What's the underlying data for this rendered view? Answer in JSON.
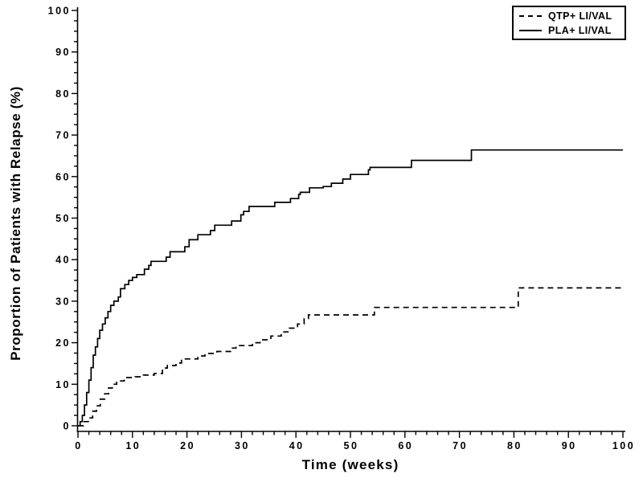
{
  "chart_data": {
    "type": "line",
    "subtype": "step-kaplan-meier",
    "title": "",
    "xlabel": "Time (weeks)",
    "ylabel": "Proportion of Patients with Relapse (%)",
    "xlim": [
      0,
      100
    ],
    "ylim": [
      0,
      100
    ],
    "x_ticks": [
      0,
      10,
      20,
      30,
      40,
      50,
      60,
      70,
      80,
      90,
      100
    ],
    "y_ticks": [
      0,
      10,
      20,
      30,
      40,
      50,
      60,
      70,
      80,
      90,
      100
    ],
    "x_minor_tick_step": 2,
    "y_minor_tick_step": 2.5,
    "grid": "off",
    "legend_position": "top-right",
    "line_color": "#000000",
    "background_color": "#ffffff",
    "series": [
      {
        "name": "QTP+ LI/VAL",
        "style": "dashed",
        "points": [
          [
            0,
            0
          ],
          [
            1,
            1
          ],
          [
            1.9,
            1.9
          ],
          [
            2.7,
            3.5
          ],
          [
            3.4,
            4.8
          ],
          [
            4.1,
            6.4
          ],
          [
            4.9,
            7.7
          ],
          [
            5.6,
            9.1
          ],
          [
            6.3,
            10
          ],
          [
            7.1,
            10.8
          ],
          [
            8.5,
            11.6
          ],
          [
            10.5,
            11.8
          ],
          [
            12,
            12.2
          ],
          [
            14,
            12.6
          ],
          [
            15.5,
            13.9
          ],
          [
            16.4,
            14.5
          ],
          [
            18,
            15.1
          ],
          [
            19,
            16.1
          ],
          [
            22,
            16.8
          ],
          [
            23.3,
            17.4
          ],
          [
            25.5,
            17.9
          ],
          [
            28,
            18.7
          ],
          [
            29,
            19.3
          ],
          [
            32,
            20
          ],
          [
            33.4,
            20.7
          ],
          [
            35.4,
            21.6
          ],
          [
            37.3,
            22.6
          ],
          [
            38.8,
            23.5
          ],
          [
            40.3,
            24.5
          ],
          [
            41.5,
            25.8
          ],
          [
            42.3,
            26.7
          ],
          [
            54.4,
            28.5
          ],
          [
            80.8,
            33.2
          ],
          [
            100,
            33.2
          ]
        ]
      },
      {
        "name": "PLA+ LI/VAL",
        "style": "solid",
        "points": [
          [
            0,
            0
          ],
          [
            0.4,
            1
          ],
          [
            0.8,
            2.5
          ],
          [
            1.2,
            5
          ],
          [
            1.6,
            8
          ],
          [
            2,
            11
          ],
          [
            2.4,
            14
          ],
          [
            2.8,
            17
          ],
          [
            3.2,
            19
          ],
          [
            3.6,
            21
          ],
          [
            4,
            23
          ],
          [
            4.5,
            24.5
          ],
          [
            5,
            26
          ],
          [
            5.5,
            27.5
          ],
          [
            6,
            29
          ],
          [
            6.6,
            30
          ],
          [
            7.4,
            31
          ],
          [
            7.8,
            33
          ],
          [
            8.6,
            34
          ],
          [
            9.3,
            35
          ],
          [
            10,
            35.7
          ],
          [
            10.8,
            36.4
          ],
          [
            12.2,
            37.7
          ],
          [
            13,
            38.6
          ],
          [
            13.4,
            39.6
          ],
          [
            16.2,
            40.6
          ],
          [
            16.9,
            41.9
          ],
          [
            19.6,
            43.1
          ],
          [
            20.4,
            44.8
          ],
          [
            22,
            46
          ],
          [
            24.3,
            47
          ],
          [
            25.1,
            48.3
          ],
          [
            28.2,
            49.3
          ],
          [
            29.9,
            50.8
          ],
          [
            30.4,
            51.6
          ],
          [
            31.4,
            52.8
          ],
          [
            36.1,
            53.8
          ],
          [
            39,
            54.7
          ],
          [
            40.5,
            55.7
          ],
          [
            40.8,
            56.2
          ],
          [
            42.5,
            57.3
          ],
          [
            45,
            57.6
          ],
          [
            46.5,
            58.4
          ],
          [
            48.6,
            59.4
          ],
          [
            50,
            60.5
          ],
          [
            53.3,
            61.6
          ],
          [
            53.6,
            62.2
          ],
          [
            61.2,
            63.9
          ],
          [
            72.2,
            66.4
          ],
          [
            100,
            66.4
          ]
        ]
      }
    ]
  }
}
